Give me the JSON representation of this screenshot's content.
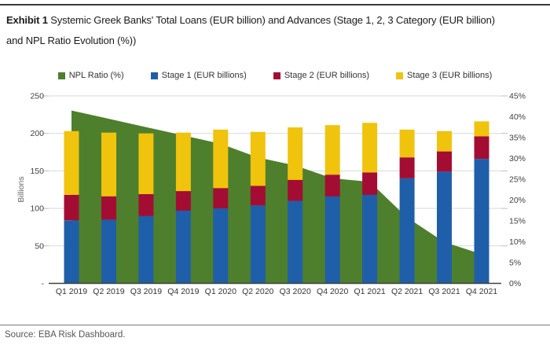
{
  "exhibit": {
    "title_bold": "Exhibit 1",
    "title_rest": " Systemic Greek Banks' Total Loans (EUR billion) and Advances (Stage 1, 2, 3 Category (EUR billion)",
    "title_line2": "and NPL Ratio Evolution (%))",
    "source": "Source: EBA Risk Dashboard."
  },
  "colors": {
    "stage1_blue": "#1F5FA9",
    "stage2_red": "#A40D33",
    "stage3_yellow": "#F0C30D",
    "npl_green": "#4E7F2D",
    "gridline": "#D9D9D9",
    "axis_line": "#404040",
    "axis_text": "#404040",
    "source_text": "#555555"
  },
  "legend": [
    {
      "label": "NPL Ratio (%)",
      "color": "#4E7F2D"
    },
    {
      "label": "Stage 1 (EUR billions)",
      "color": "#1F5FA9"
    },
    {
      "label": "Stage 2 (EUR billions)",
      "color": "#A40D33"
    },
    {
      "label": "Stage 3 (EUR billions)",
      "color": "#F0C30D"
    }
  ],
  "chart_data": {
    "type": "bar",
    "subtype": "stacked bars with area overlay on secondary axis",
    "categories": [
      "Q1 2019",
      "Q2 2019",
      "Q3 2019",
      "Q4 2019",
      "Q1 2020",
      "Q2 2020",
      "Q3 2020",
      "Q4 2020",
      "Q1 2021",
      "Q2 2021",
      "Q3 2021",
      "Q4 2021"
    ],
    "series": [
      {
        "name": "Stage 1 (EUR billions)",
        "type": "bar",
        "axis": "left",
        "color": "#1F5FA9",
        "values": [
          84,
          85,
          90,
          97,
          100,
          104,
          110,
          116,
          118,
          140,
          149,
          166
        ]
      },
      {
        "name": "Stage 2 (EUR billions)",
        "type": "bar",
        "axis": "left",
        "color": "#A40D33",
        "values": [
          34,
          31,
          29,
          26,
          27,
          26,
          28,
          29,
          30,
          28,
          27,
          30
        ]
      },
      {
        "name": "Stage 3 (EUR billions)",
        "type": "bar",
        "axis": "left",
        "color": "#F0C30D",
        "values": [
          85,
          85,
          81,
          78,
          78,
          72,
          70,
          66,
          66,
          37,
          27,
          20
        ]
      },
      {
        "name": "NPL Ratio (%)",
        "type": "area",
        "axis": "right",
        "color": "#4E7F2D",
        "values": [
          41.5,
          39.5,
          37.5,
          35.5,
          33.5,
          30.2,
          28.3,
          25.2,
          24.4,
          15.8,
          9.9,
          7.0
        ]
      }
    ],
    "bar_totals": [
      203,
      201,
      200,
      201,
      205,
      202,
      208,
      211,
      214,
      205,
      203,
      216
    ],
    "left_axis": {
      "label": "Billions",
      "min": 0,
      "max": 250,
      "step": 50,
      "ticks": [
        {
          "value": 250,
          "label": "250"
        },
        {
          "value": 200,
          "label": "200"
        },
        {
          "value": 150,
          "label": "150"
        },
        {
          "value": 100,
          "label": "100"
        },
        {
          "value": 50,
          "label": "50"
        },
        {
          "value": 0,
          "label": "-"
        }
      ]
    },
    "right_axis": {
      "min": 0,
      "max": 45,
      "step": 5,
      "ticks": [
        {
          "value": 45,
          "label": "45%"
        },
        {
          "value": 40,
          "label": "40%"
        },
        {
          "value": 35,
          "label": "35%"
        },
        {
          "value": 30,
          "label": "30%"
        },
        {
          "value": 25,
          "label": "25%"
        },
        {
          "value": 20,
          "label": "20%"
        },
        {
          "value": 15,
          "label": "15%"
        },
        {
          "value": 10,
          "label": "10%"
        },
        {
          "value": 5,
          "label": "5%"
        },
        {
          "value": 0,
          "label": "0%"
        }
      ]
    },
    "legend_position": "top-center",
    "grid": "horizontal light-gray lines at left-axis 50 intervals"
  }
}
